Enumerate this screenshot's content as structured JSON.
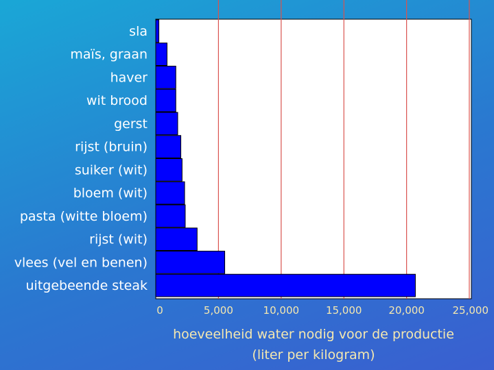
{
  "chart_data": {
    "type": "bar",
    "orientation": "horizontal",
    "categories": [
      "sla",
      "maïs, graan",
      "haver",
      "wit brood",
      "gerst",
      "rijst (bruin)",
      "suiker (wit)",
      "bloem (wit)",
      "pasta (witte bloem)",
      "rijst (wit)",
      "vlees (vel en benen)",
      "uitgebeende steak"
    ],
    "values": [
      250,
      900,
      1600,
      1600,
      1750,
      2000,
      2100,
      2300,
      2350,
      3300,
      5500,
      20700
    ],
    "xlim": [
      0,
      25000
    ],
    "xticks": [
      0,
      5000,
      10000,
      15000,
      20000,
      25000
    ],
    "xtick_labels": [
      "0",
      "5,000",
      "10,000",
      "15,000",
      "20,000",
      "25,000"
    ],
    "xlabel_line1": "hoeveelheid water nodig voor de productie",
    "xlabel_line2": "(liter per kilogram)",
    "grid": true,
    "colors": {
      "bar": "#0000ff",
      "bar_edge": "#000000",
      "gridline": "#d9534f",
      "plot_background": "#ffffff",
      "category_text": "#ffffff",
      "axis_text": "#f4e8b0"
    }
  }
}
